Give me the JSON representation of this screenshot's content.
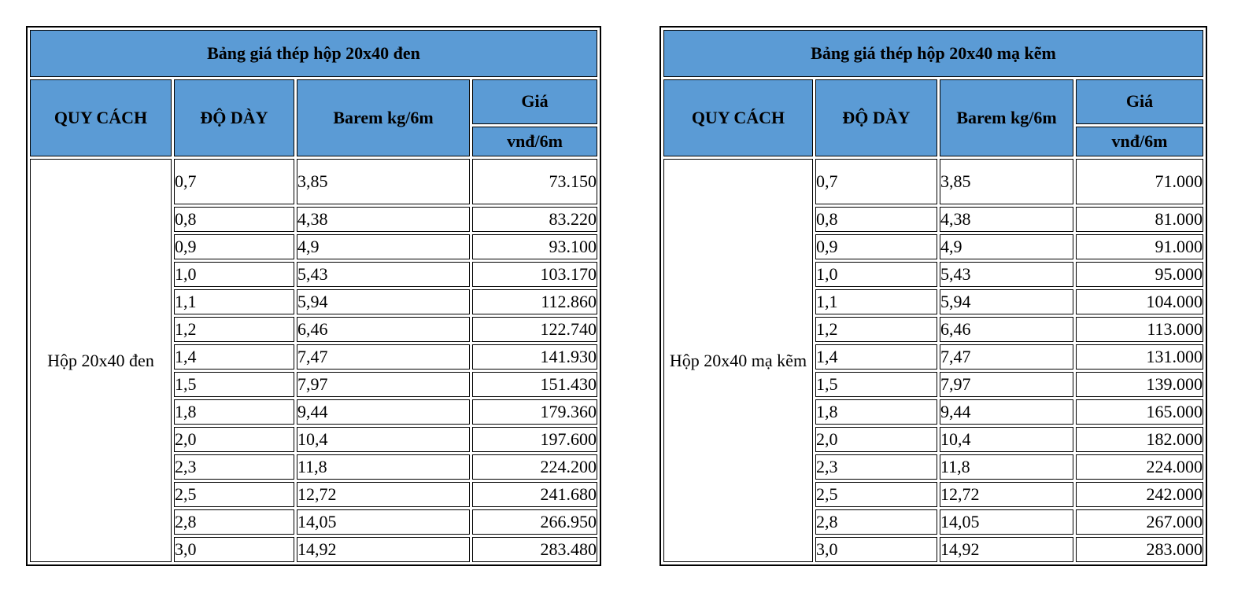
{
  "colors": {
    "header_blue": "#5b9bd5",
    "border": "#000000",
    "header_text": "#ffffff",
    "body_text": "#000000"
  },
  "tables": [
    {
      "title": "Bảng giá thép hộp 20x40 đen",
      "columns": {
        "spec": "QUY CÁCH",
        "thickness": "ĐỘ DÀY",
        "barem": "Barem kg/6m",
        "price": "Giá",
        "price_unit": "vnđ/6m"
      },
      "spec_value": "Hộp 20x40 đen",
      "rows": [
        {
          "thickness": "0,7",
          "barem": "3,85",
          "price": "73.150"
        },
        {
          "thickness": "0,8",
          "barem": "4,38",
          "price": "83.220"
        },
        {
          "thickness": "0,9",
          "barem": "4,9",
          "price": "93.100"
        },
        {
          "thickness": "1,0",
          "barem": "5,43",
          "price": "103.170"
        },
        {
          "thickness": "1,1",
          "barem": "5,94",
          "price": "112.860"
        },
        {
          "thickness": "1,2",
          "barem": "6,46",
          "price": "122.740"
        },
        {
          "thickness": "1,4",
          "barem": "7,47",
          "price": "141.930"
        },
        {
          "thickness": "1,5",
          "barem": "7,97",
          "price": "151.430"
        },
        {
          "thickness": "1,8",
          "barem": "9,44",
          "price": "179.360"
        },
        {
          "thickness": "2,0",
          "barem": "10,4",
          "price": "197.600"
        },
        {
          "thickness": "2,3",
          "barem": "11,8",
          "price": "224.200"
        },
        {
          "thickness": "2,5",
          "barem": "12,72",
          "price": "241.680"
        },
        {
          "thickness": "2,8",
          "barem": "14,05",
          "price": "266.950"
        },
        {
          "thickness": "3,0",
          "barem": "14,92",
          "price": "283.480"
        }
      ]
    },
    {
      "title": "Bảng giá thép hộp 20x40 mạ kẽm",
      "columns": {
        "spec": "QUY CÁCH",
        "thickness": "ĐỘ DÀY",
        "barem": "Barem kg/6m",
        "price": "Giá",
        "price_unit": "vnđ/6m"
      },
      "spec_value": "Hộp 20x40 mạ kẽm",
      "rows": [
        {
          "thickness": "0,7",
          "barem": "3,85",
          "price": "71.000"
        },
        {
          "thickness": "0,8",
          "barem": "4,38",
          "price": "81.000"
        },
        {
          "thickness": "0,9",
          "barem": "4,9",
          "price": "91.000"
        },
        {
          "thickness": "1,0",
          "barem": "5,43",
          "price": "95.000"
        },
        {
          "thickness": "1,1",
          "barem": "5,94",
          "price": "104.000"
        },
        {
          "thickness": "1,2",
          "barem": "6,46",
          "price": "113.000"
        },
        {
          "thickness": "1,4",
          "barem": "7,47",
          "price": "131.000"
        },
        {
          "thickness": "1,5",
          "barem": "7,97",
          "price": "139.000"
        },
        {
          "thickness": "1,8",
          "barem": "9,44",
          "price": "165.000"
        },
        {
          "thickness": "2,0",
          "barem": "10,4",
          "price": "182.000"
        },
        {
          "thickness": "2,3",
          "barem": "11,8",
          "price": "224.000"
        },
        {
          "thickness": "2,5",
          "barem": "12,72",
          "price": "242.000"
        },
        {
          "thickness": "2,8",
          "barem": "14,05",
          "price": "267.000"
        },
        {
          "thickness": "3,0",
          "barem": "14,92",
          "price": "283.000"
        }
      ]
    }
  ]
}
